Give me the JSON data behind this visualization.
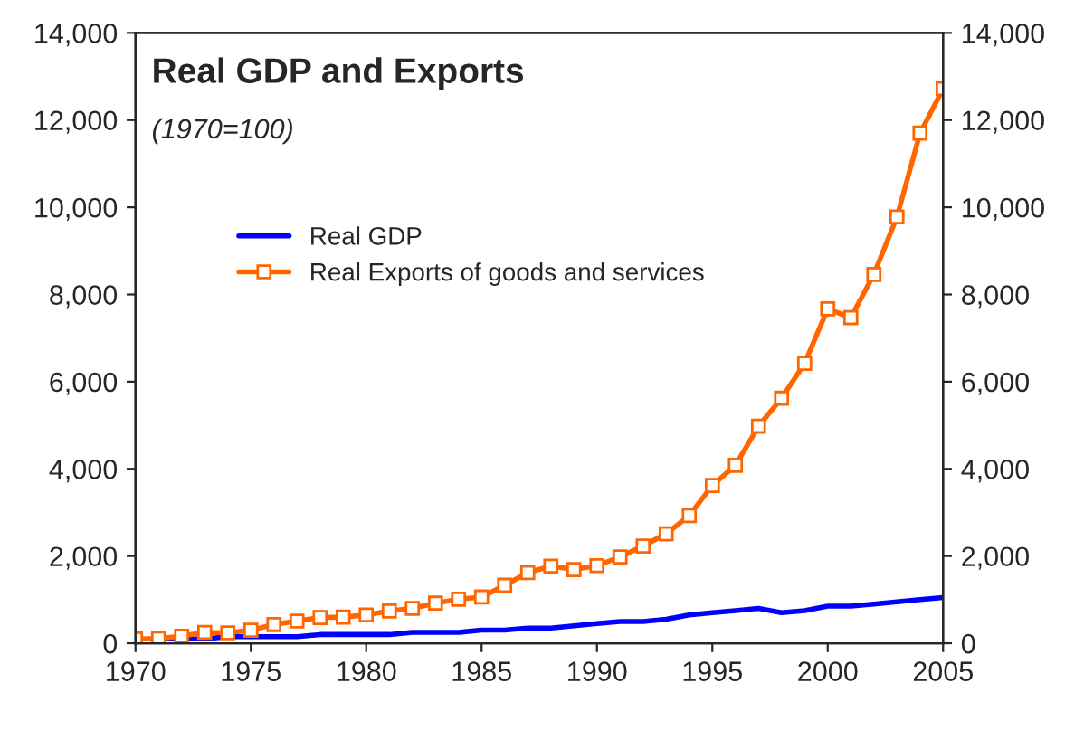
{
  "chart_data": {
    "type": "line",
    "title": "Real GDP and Exports",
    "subtitle": "(1970=100)",
    "x": [
      1970,
      1971,
      1972,
      1973,
      1974,
      1975,
      1976,
      1977,
      1978,
      1979,
      1980,
      1981,
      1982,
      1983,
      1984,
      1985,
      1986,
      1987,
      1988,
      1989,
      1990,
      1991,
      1992,
      1993,
      1994,
      1995,
      1996,
      1997,
      1998,
      1999,
      2000,
      2001,
      2002,
      2003,
      2004,
      2005
    ],
    "series": [
      {
        "name": "Real GDP",
        "color": "#0000ff",
        "marker": "none",
        "values": [
          null,
          100,
          100,
          100,
          150,
          150,
          150,
          150,
          200,
          200,
          200,
          200,
          250,
          250,
          250,
          300,
          300,
          350,
          350,
          400,
          450,
          500,
          500,
          550,
          650,
          700,
          750,
          800,
          700,
          750,
          850,
          850,
          900,
          950,
          1000,
          1050
        ]
      },
      {
        "name": "Real Exports of goods and services",
        "color": "#ff6600",
        "marker": "square",
        "values": [
          100,
          110,
          160,
          250,
          240,
          300,
          430,
          510,
          590,
          600,
          650,
          740,
          800,
          920,
          1010,
          1060,
          1330,
          1620,
          1770,
          1690,
          1780,
          1980,
          2230,
          2510,
          2930,
          3620,
          4080,
          4980,
          5620,
          6420,
          7670,
          7470,
          8460,
          9780,
          11700,
          12720
        ]
      }
    ],
    "xlim": [
      1970,
      2005
    ],
    "xticks": [
      1970,
      1975,
      1980,
      1985,
      1990,
      1995,
      2000,
      2005
    ],
    "ylim": [
      0,
      14000
    ],
    "yticks": [
      {
        "value": 0,
        "label": "0"
      },
      {
        "value": 2000,
        "label": "2,000"
      },
      {
        "value": 4000,
        "label": "4,000"
      },
      {
        "value": 6000,
        "label": "6,000"
      },
      {
        "value": 8000,
        "label": "8,000"
      },
      {
        "value": 10000,
        "label": "10,000"
      },
      {
        "value": 12000,
        "label": "12,000"
      },
      {
        "value": 14000,
        "label": "14,000"
      }
    ],
    "y2lim": [
      0,
      14000
    ],
    "y2ticks": [
      {
        "value": 0,
        "label": "0"
      },
      {
        "value": 2000,
        "label": "2,000"
      },
      {
        "value": 4000,
        "label": "4,000"
      },
      {
        "value": 6000,
        "label": "6,000"
      },
      {
        "value": 8000,
        "label": "8,000"
      },
      {
        "value": 10000,
        "label": "10,000"
      },
      {
        "value": 12000,
        "label": "12,000"
      },
      {
        "value": 14000,
        "label": "14,000"
      }
    ],
    "grid": false,
    "legend": "top left",
    "line_style": "solid"
  }
}
